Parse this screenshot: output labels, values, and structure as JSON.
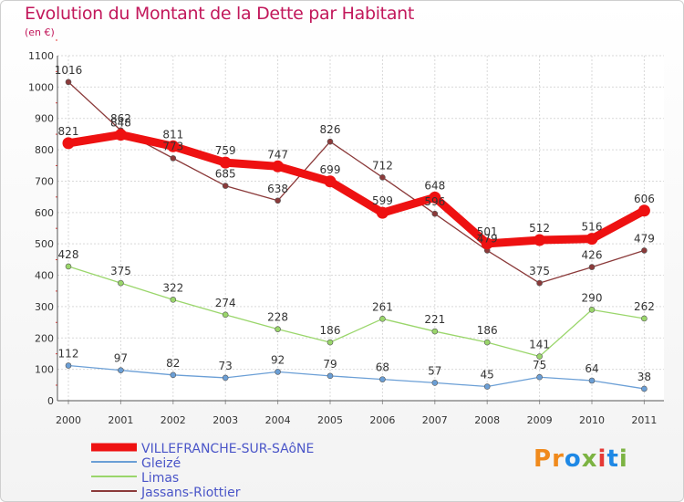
{
  "chart_data": {
    "type": "line",
    "title": "Evolution du Montant de la Dette par Habitant",
    "subtitle": "(en €)",
    "xlabel": "",
    "ylabel": "",
    "ylim": [
      0,
      1100
    ],
    "yticks": [
      0,
      100,
      200,
      300,
      400,
      500,
      600,
      700,
      800,
      900,
      1000,
      1100
    ],
    "x": [
      "2000",
      "2001",
      "2002",
      "2003",
      "2004",
      "2005",
      "2006",
      "2007",
      "2008",
      "2009",
      "2010",
      "2011"
    ],
    "grid": true,
    "legend_position": "bottom-left",
    "series": [
      {
        "name": "VILLEFRANCHE-SUR-SAôNE",
        "color": "#ee1111",
        "values": [
          821,
          848,
          811,
          759,
          747,
          699,
          599,
          648,
          501,
          512,
          516,
          606
        ]
      },
      {
        "name": "Gleizé",
        "color": "#6b9fd6",
        "values": [
          112,
          97,
          82,
          73,
          92,
          79,
          68,
          57,
          45,
          75,
          64,
          38
        ]
      },
      {
        "name": "Limas",
        "color": "#9ad66b",
        "values": [
          428,
          375,
          322,
          274,
          228,
          186,
          261,
          221,
          186,
          141,
          290,
          262
        ]
      },
      {
        "name": "Jassans-Riottier",
        "color": "#8b3a3a",
        "values": [
          1016,
          862,
          773,
          685,
          638,
          826,
          712,
          596,
          479,
          375,
          426,
          479
        ]
      }
    ]
  },
  "logo_text": "Proxiti"
}
